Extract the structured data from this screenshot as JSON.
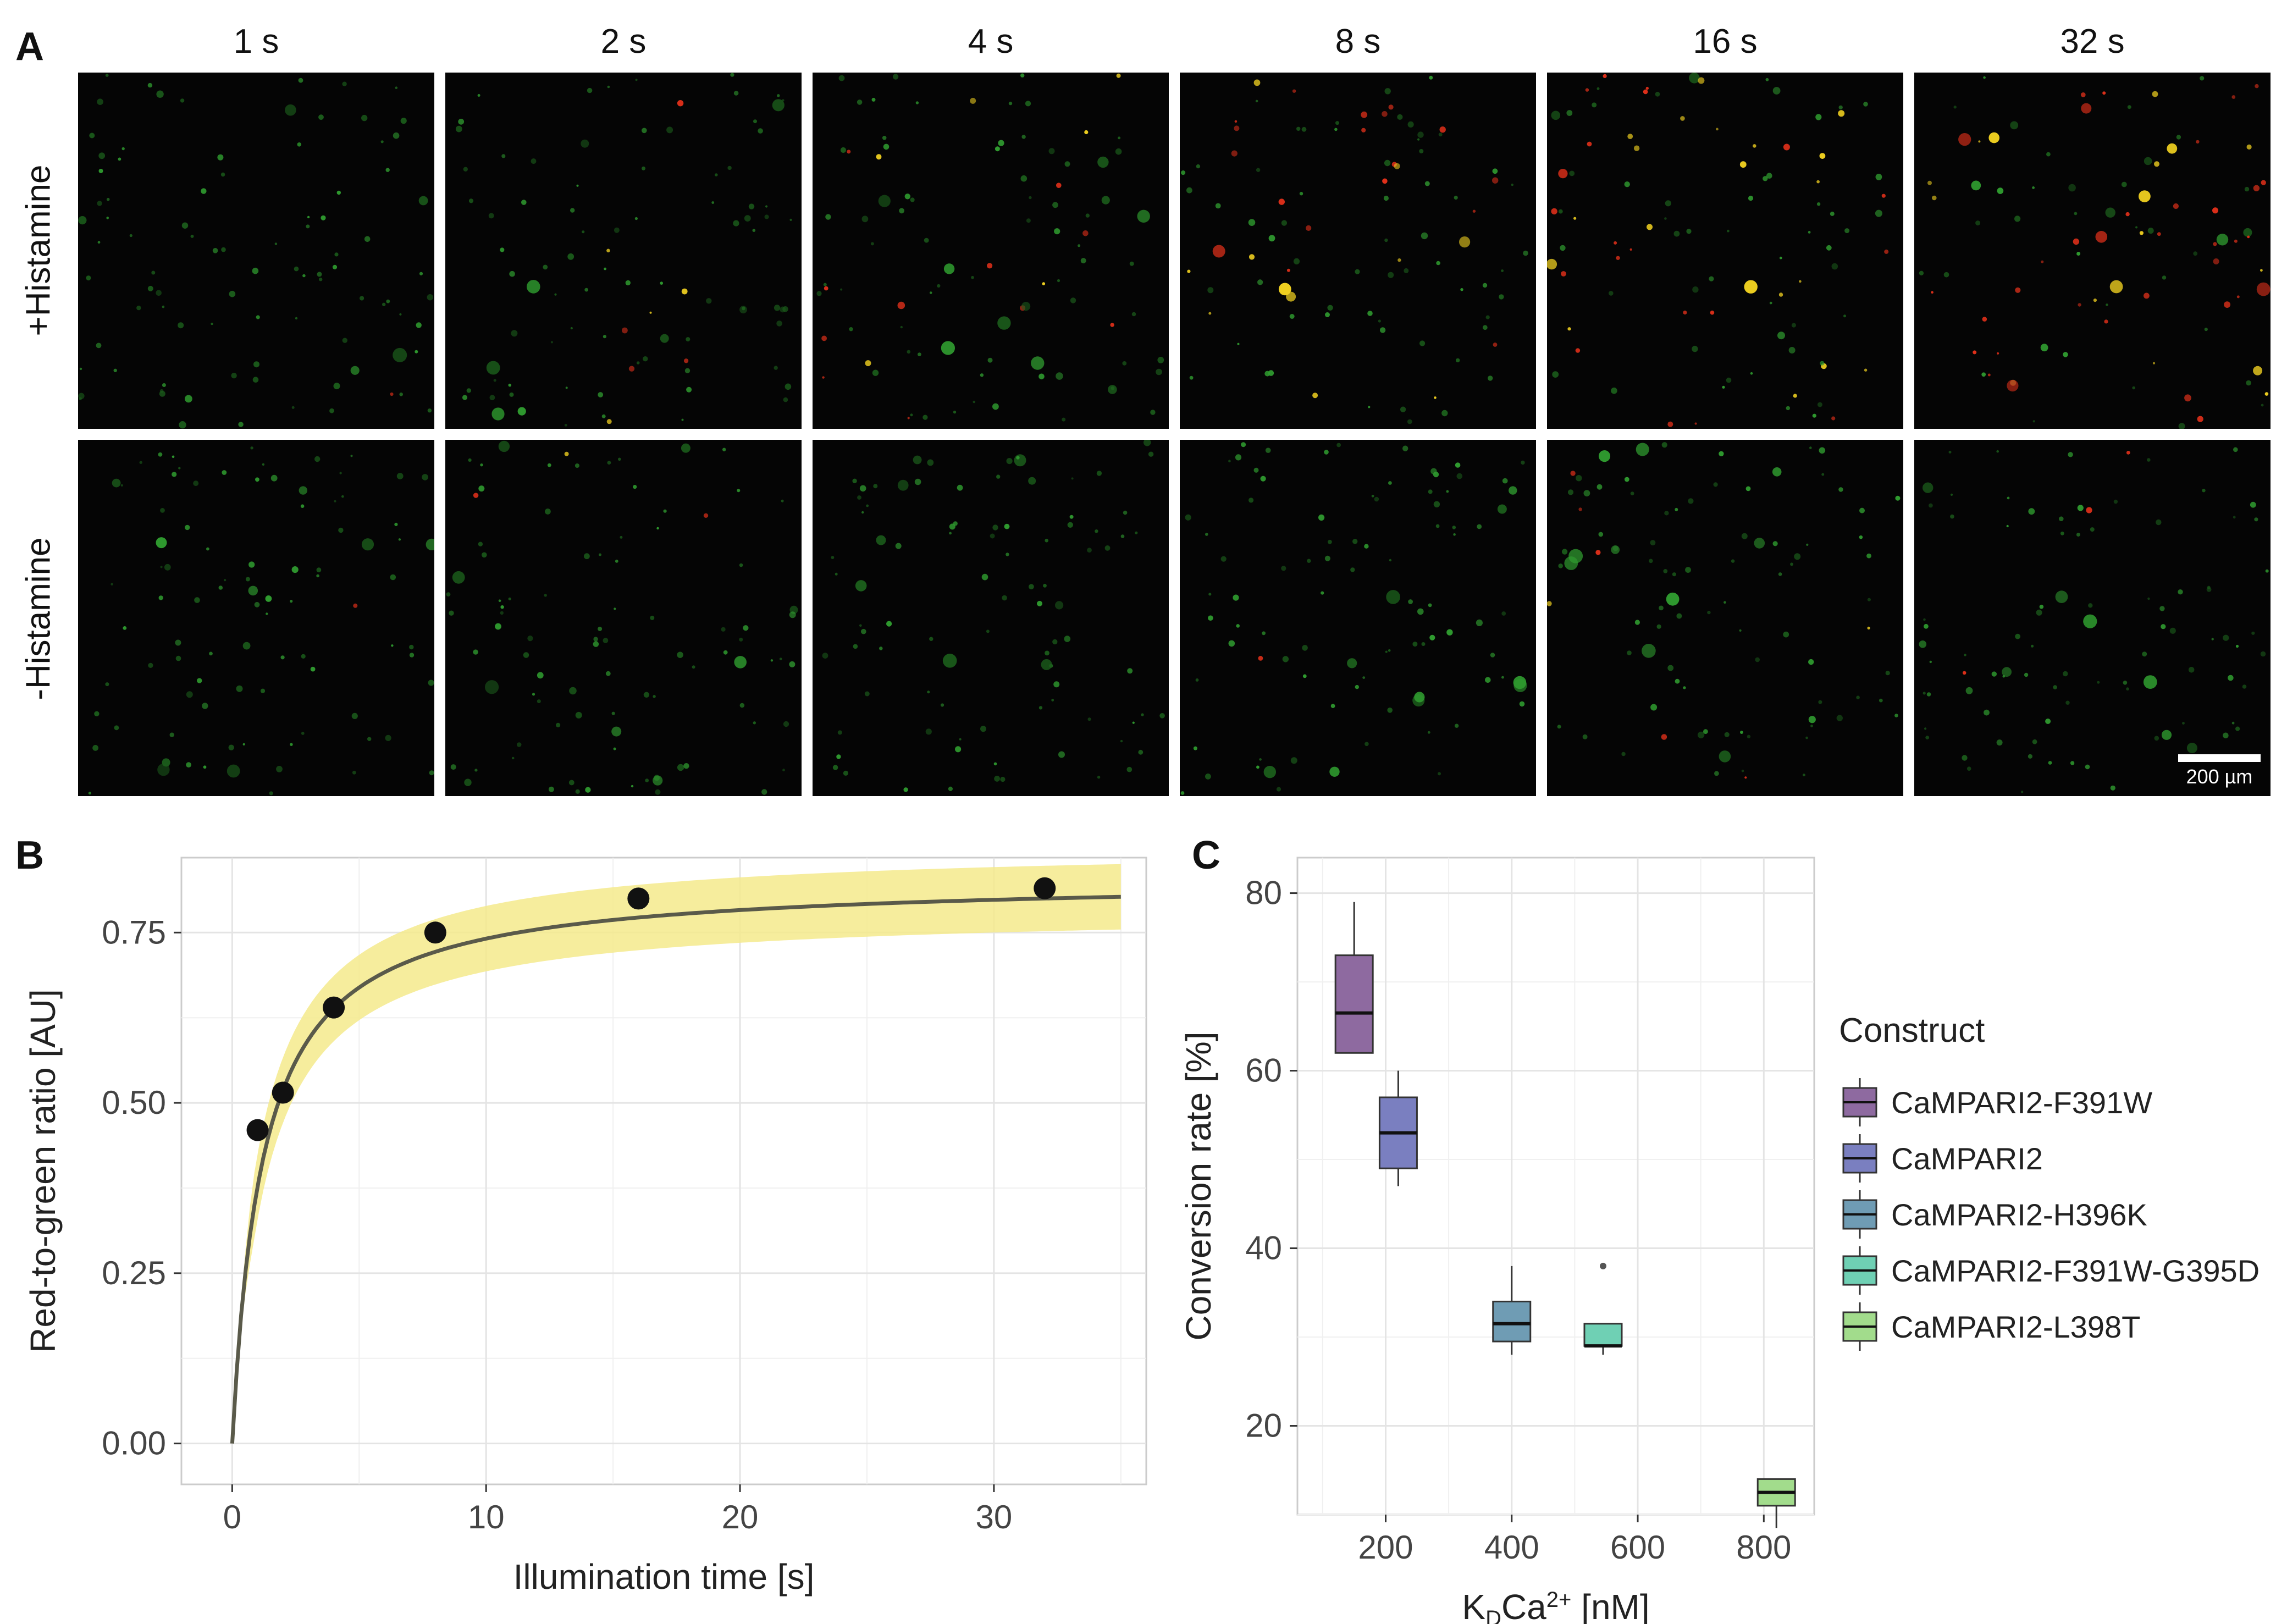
{
  "panel_a": {
    "letter": "A",
    "columns": [
      "1 s",
      "2 s",
      "4 s",
      "8 s",
      "16  s",
      "32 s"
    ],
    "rows": [
      "+Histamine",
      "-Histamine"
    ],
    "scale_bar": "200 µm"
  },
  "panel_b": {
    "letter": "B",
    "ticks_x": [
      "0",
      "10",
      "20",
      "30"
    ],
    "ticks_y": [
      "0.00",
      "0.25",
      "0.50",
      "0.75"
    ]
  },
  "panel_c": {
    "letter": "C",
    "ticks_x": [
      "200",
      "400",
      "600",
      "800"
    ],
    "ticks_y": [
      "20",
      "40",
      "60",
      "80"
    ]
  },
  "chart_data": [
    {
      "type": "scatter",
      "title": "",
      "xlabel": "Illumination time [s]",
      "ylabel": "Red-to-green ratio [AU]",
      "xlim": [
        -2,
        36
      ],
      "ylim": [
        -0.06,
        0.86
      ],
      "points": {
        "x": [
          1,
          2,
          4,
          8,
          16,
          32
        ],
        "y": [
          0.46,
          0.515,
          0.64,
          0.75,
          0.8,
          0.815
        ]
      },
      "fit": {
        "model": "hyperbolic",
        "ymax": 0.83,
        "k": 1.2,
        "x_range": [
          0,
          35
        ],
        "band_halfwidth": 0.048
      },
      "colors": {
        "points": "#111111",
        "fit": "#5a5a4a",
        "band": "#f5ea8c"
      }
    },
    {
      "type": "box",
      "title": "",
      "xlabel": "KDCa2+ [nM]",
      "xlabel_main": "K",
      "xlabel_sub": "D",
      "xlabel_mid": "Ca",
      "xlabel_sup": "2+",
      "xlabel_tail": " [nM]",
      "ylabel": "Conversion rate [%]",
      "xlim": [
        60,
        880
      ],
      "ylim": [
        10,
        84
      ],
      "legend_title": "Construct",
      "legend_position": "right",
      "series": [
        {
          "name": "CaMPARI2-F391W",
          "x": 150,
          "min": 62,
          "q1": 62,
          "median": 66.5,
          "q3": 73,
          "max": 79,
          "outliers": [],
          "color": "#8e6aa0"
        },
        {
          "name": "CaMPARI2",
          "x": 220,
          "min": 47,
          "q1": 49,
          "median": 53,
          "q3": 57,
          "max": 60,
          "outliers": [],
          "color": "#7a7fc0"
        },
        {
          "name": "CaMPARI2-H396K",
          "x": 400,
          "min": 28,
          "q1": 29.5,
          "median": 31.5,
          "q3": 34,
          "max": 38,
          "outliers": [],
          "color": "#6f9cb4"
        },
        {
          "name": "CaMPARI2-F391W-G395D",
          "x": 545,
          "min": 28,
          "q1": 29,
          "median": 29,
          "q3": 31.5,
          "max": 31.5,
          "outliers": [
            38
          ],
          "color": "#6fd0b4"
        },
        {
          "name": "CaMPARI2-L398T",
          "x": 820,
          "min": 8.5,
          "q1": 11,
          "median": 12.5,
          "q3": 14,
          "max": 14,
          "outliers": [],
          "color": "#a2dc8c"
        }
      ]
    }
  ]
}
